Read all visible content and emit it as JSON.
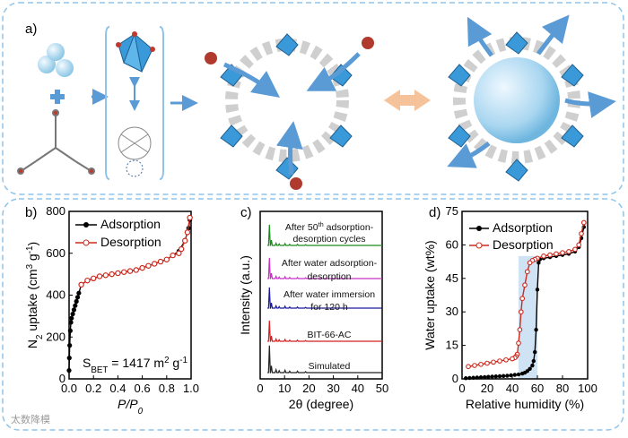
{
  "panel_a": {
    "label": "a)"
  },
  "chart_data": [
    {
      "id": "b",
      "type": "line",
      "panel_label": "b)",
      "xlabel": "P/P",
      "xlabel_sub": "0",
      "ylabel": "N uptake (cm g)",
      "ylabel_parts": [
        "N",
        "2",
        " uptake (cm",
        "3",
        " g",
        "-1",
        ")"
      ],
      "xlim": [
        0,
        1.0
      ],
      "ylim": [
        0,
        800
      ],
      "xticks": [
        "0.0",
        "0.2",
        "0.4",
        "0.6",
        "0.8",
        "1.0"
      ],
      "yticks": [
        "0",
        "200",
        "400",
        "600",
        "800"
      ],
      "legend": [
        "Adsorption",
        "Desorption"
      ],
      "annotation": "S = 1417 m g",
      "annotation_parts": [
        "S",
        "BET",
        " = 1417 m",
        "2",
        " g",
        "-1"
      ],
      "series": [
        {
          "name": "Adsorption",
          "color": "#000000",
          "x": [
            0.0,
            0.002,
            0.005,
            0.01,
            0.015,
            0.02,
            0.03,
            0.04,
            0.05,
            0.06,
            0.07,
            0.08,
            0.1,
            0.15,
            0.2,
            0.25,
            0.3,
            0.35,
            0.4,
            0.45,
            0.5,
            0.55,
            0.6,
            0.65,
            0.7,
            0.75,
            0.8,
            0.85,
            0.9,
            0.95,
            0.98,
            0.99
          ],
          "y": [
            40,
            100,
            160,
            230,
            270,
            290,
            310,
            330,
            350,
            370,
            390,
            410,
            450,
            470,
            480,
            490,
            495,
            500,
            505,
            510,
            515,
            520,
            530,
            540,
            550,
            560,
            570,
            590,
            610,
            660,
            720,
            760
          ]
        },
        {
          "name": "Desorption",
          "color": "#cc2b1f",
          "x": [
            0.99,
            0.97,
            0.95,
            0.92,
            0.9,
            0.85,
            0.8,
            0.75,
            0.7,
            0.65,
            0.6,
            0.55,
            0.5,
            0.45,
            0.4,
            0.35,
            0.3,
            0.25,
            0.2,
            0.15,
            0.1
          ],
          "y": [
            770,
            700,
            660,
            620,
            600,
            590,
            570,
            560,
            550,
            540,
            530,
            520,
            515,
            510,
            505,
            500,
            495,
            490,
            480,
            470,
            450
          ]
        }
      ]
    },
    {
      "id": "c",
      "type": "line",
      "panel_label": "c)",
      "xlabel": "2θ (degree)",
      "ylabel": "Intensity (a.u.)",
      "xlim": [
        0,
        50
      ],
      "xticks": [
        "0",
        "10",
        "20",
        "30",
        "40",
        "50"
      ],
      "series": [
        {
          "name": "Simulated",
          "color": "#222222",
          "label_lines": [
            "Simulated"
          ]
        },
        {
          "name": "BIT-66-AC",
          "color": "#d42020",
          "label_lines": [
            "BIT-66-AC"
          ]
        },
        {
          "name": "After water immersion for 120 h",
          "color": "#1a1a9a",
          "label_lines": [
            "After water immersion",
            "for 120 h"
          ]
        },
        {
          "name": "After water adsorption-desorption",
          "color": "#c830c8",
          "label_lines": [
            "After water adsorption-",
            "desorption"
          ]
        },
        {
          "name": "After 50th adsorption-desorption cycles",
          "color": "#1e8a1e",
          "label_lines": [
            "After 50",
            "th",
            " adsorption-",
            "desorption cycles"
          ]
        }
      ],
      "peaks_x": [
        3.8,
        4.6,
        6.5,
        7.8,
        10.2,
        12.1,
        15.3,
        18.6
      ]
    },
    {
      "id": "d",
      "type": "line",
      "panel_label": "d)",
      "xlabel": "Relative humidity (%)",
      "ylabel": "Water uptake (wt%)",
      "xlim": [
        0,
        100
      ],
      "ylim": [
        0,
        75
      ],
      "xticks": [
        "0",
        "20",
        "40",
        "60",
        "80",
        "100"
      ],
      "yticks": [
        "0",
        "15",
        "30",
        "45",
        "60",
        "75"
      ],
      "legend": [
        "Adsorption",
        "Desorption"
      ],
      "shaded_x": [
        45,
        60
      ],
      "series": [
        {
          "name": "Adsorption",
          "color": "#000000",
          "x": [
            3,
            6,
            9,
            12,
            15,
            18,
            21,
            24,
            27,
            30,
            33,
            36,
            39,
            42,
            45,
            48,
            50,
            52,
            54,
            56,
            57,
            58,
            59,
            60,
            61,
            62,
            65,
            70,
            75,
            80,
            85,
            90,
            93,
            95,
            97
          ],
          "y": [
            0.3,
            0.4,
            0.5,
            0.6,
            0.7,
            0.8,
            0.9,
            1.0,
            1.1,
            1.2,
            1.3,
            1.4,
            1.6,
            1.8,
            2.0,
            2.4,
            2.8,
            3.5,
            4.5,
            6,
            8,
            12,
            22,
            40,
            52,
            53.5,
            54,
            54.5,
            55,
            55.5,
            56,
            57,
            59,
            63,
            68
          ]
        },
        {
          "name": "Desorption",
          "color": "#cc2b1f",
          "x": [
            97,
            95,
            93,
            90,
            85,
            80,
            75,
            70,
            65,
            60,
            58,
            56,
            54,
            52,
            50,
            48,
            47,
            46,
            45,
            44,
            43,
            42,
            40,
            35,
            30,
            25,
            20,
            15,
            10,
            5
          ],
          "y": [
            70,
            65,
            60,
            58,
            57,
            56.5,
            56,
            55.5,
            55,
            54,
            53.5,
            53,
            52,
            48,
            42,
            36,
            30,
            22,
            16,
            11,
            10,
            9.5,
            9,
            8.5,
            8,
            7.5,
            7,
            6.5,
            6,
            5.5
          ]
        }
      ]
    }
  ],
  "watermark": "太数降模"
}
